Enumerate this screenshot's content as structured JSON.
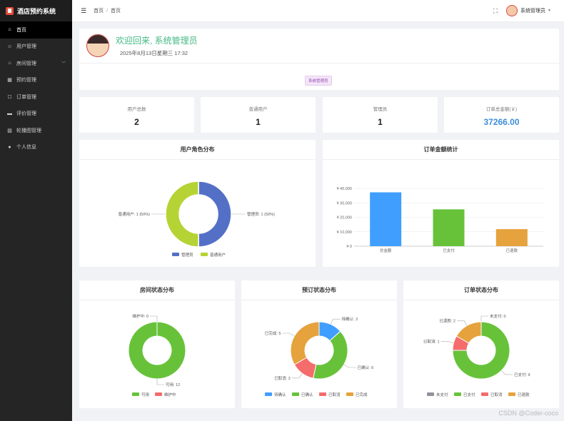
{
  "app": {
    "title": "酒店预约系统"
  },
  "sidebar": {
    "items": [
      {
        "label": "首页",
        "active": true
      },
      {
        "label": "用户管理"
      },
      {
        "label": "房间管理",
        "has_submenu": true
      },
      {
        "label": "预约管理"
      },
      {
        "label": "订单管理"
      },
      {
        "label": "评价管理"
      },
      {
        "label": "轮播图管理"
      },
      {
        "label": "个人信息"
      }
    ]
  },
  "breadcrumb": [
    "首页",
    "首页"
  ],
  "user": {
    "name": "系统管理员"
  },
  "welcome": {
    "title": "欢迎回来, 系统管理员",
    "datetime": "2025年8月13日星期三 17:32",
    "role_tag": "系统管理员"
  },
  "stats": [
    {
      "label": "用户总数",
      "value": "2"
    },
    {
      "label": "普通用户",
      "value": "1"
    },
    {
      "label": "管理员",
      "value": "1"
    },
    {
      "label": "订单总金额(￥)",
      "value": "37266.00"
    }
  ],
  "chart_data": [
    {
      "type": "pie",
      "title": "用户角色分布",
      "slices": [
        {
          "label": "管理员",
          "value": 1,
          "percent": "50%",
          "color": "#5470c6"
        },
        {
          "label": "普通用户",
          "value": 1,
          "percent": "50%",
          "color": "#b5d334"
        }
      ],
      "legend": [
        "管理员",
        "普通用户"
      ]
    },
    {
      "type": "bar",
      "title": "订单金额统计",
      "categories": [
        "总金额",
        "已支付",
        "已退款"
      ],
      "values": [
        37266,
        25500,
        11800
      ],
      "colors": [
        "#409eff",
        "#67c23a",
        "#e6a23c"
      ],
      "ylim": [
        0,
        40000
      ],
      "yticks": [
        "¥ 0",
        "¥ 10,000",
        "¥ 20,000",
        "¥ 30,000",
        "¥ 40,000"
      ]
    },
    {
      "type": "pie",
      "title": "房间状态分布",
      "slices": [
        {
          "label": "可用",
          "value": 12,
          "color": "#67c23a"
        },
        {
          "label": "维护中",
          "value": 0,
          "color": "#f56c6c"
        }
      ],
      "legend": [
        "可用",
        "维护中"
      ]
    },
    {
      "type": "pie",
      "title": "预订状态分布",
      "slices": [
        {
          "label": "待确认",
          "value": 2,
          "color": "#409eff"
        },
        {
          "label": "已确认",
          "value": 6,
          "color": "#67c23a"
        },
        {
          "label": "已取消",
          "value": 2,
          "color": "#f56c6c"
        },
        {
          "label": "已完成",
          "value": 5,
          "color": "#e6a23c"
        }
      ],
      "legend": [
        "待确认",
        "已确认",
        "已取消",
        "已完成"
      ]
    },
    {
      "type": "pie",
      "title": "订单状态分布",
      "slices": [
        {
          "label": "未支付",
          "value": 0,
          "color": "#909399"
        },
        {
          "label": "已支付",
          "value": 9,
          "color": "#67c23a"
        },
        {
          "label": "已取消",
          "value": 1,
          "color": "#f56c6c"
        },
        {
          "label": "已退款",
          "value": 2,
          "color": "#e6a23c"
        }
      ],
      "legend": [
        "未支付",
        "已支付",
        "已取消",
        "已退款"
      ]
    }
  ],
  "watermark": "CSDN @Coder-coco"
}
